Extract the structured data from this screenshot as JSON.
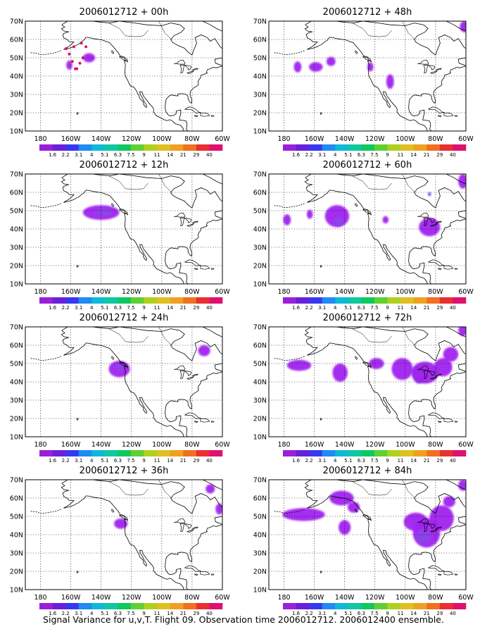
{
  "panels": [
    {
      "title": "2006012712 + 00h",
      "blobs": [
        {
          "lon": -148,
          "lat": 50,
          "rx": 4,
          "ry": 2.5,
          "c": 1
        },
        {
          "lon": -161,
          "lat": 46,
          "rx": 2,
          "ry": 2.5,
          "c": 1
        }
      ],
      "dots": [
        [
          -157,
          44
        ],
        [
          -159,
          48
        ],
        [
          -161,
          52
        ],
        [
          -163,
          55
        ],
        [
          -158,
          56
        ],
        [
          -153,
          58
        ],
        [
          -150,
          56
        ],
        [
          -152,
          50
        ],
        [
          -154,
          47
        ],
        [
          -156,
          44
        ]
      ]
    },
    {
      "title": "2006012712 + 48h",
      "blobs": [
        {
          "lon": -171,
          "lat": 45,
          "rx": 2.5,
          "ry": 3,
          "c": 1
        },
        {
          "lon": -159,
          "lat": 45,
          "rx": 4.5,
          "ry": 2.6,
          "c": 1
        },
        {
          "lon": -149,
          "lat": 48,
          "rx": 3,
          "ry": 2.5,
          "c": 1
        },
        {
          "lon": -123,
          "lat": 45,
          "rx": 2,
          "ry": 2.5,
          "c": 1
        },
        {
          "lon": -110,
          "lat": 37,
          "rx": 2.5,
          "ry": 4,
          "c": 1
        },
        {
          "lon": -61,
          "lat": 67,
          "rx": 3,
          "ry": 3,
          "c": 1
        }
      ]
    },
    {
      "title": "2006012712 + 12h",
      "blobs": [
        {
          "lon": -140,
          "lat": 49,
          "rx": 12,
          "ry": 4,
          "c": 1
        },
        {
          "lon": -138,
          "lat": 49,
          "rx": 6,
          "ry": 2,
          "c": 0
        }
      ]
    },
    {
      "title": "2006012712 + 60h",
      "blobs": [
        {
          "lon": -178,
          "lat": 45,
          "rx": 2.5,
          "ry": 3,
          "c": 1
        },
        {
          "lon": -163,
          "lat": 48,
          "rx": 2,
          "ry": 2.5,
          "c": 1
        },
        {
          "lon": -145,
          "lat": 47,
          "rx": 8,
          "ry": 6,
          "c": 1
        },
        {
          "lon": -144,
          "lat": 44,
          "rx": 3,
          "ry": 2.5,
          "c": 0
        },
        {
          "lon": -113,
          "lat": 45,
          "rx": 2,
          "ry": 2,
          "c": 1
        },
        {
          "lon": -84,
          "lat": 41,
          "rx": 7,
          "ry": 5,
          "c": 1
        },
        {
          "lon": -84,
          "lat": 59,
          "rx": 1,
          "ry": 1,
          "c": 2
        },
        {
          "lon": -62,
          "lat": 66,
          "rx": 3,
          "ry": 4,
          "c": 1
        }
      ]
    },
    {
      "title": "2006012712 + 24h",
      "blobs": [
        {
          "lon": -128,
          "lat": 47,
          "rx": 7,
          "ry": 4.5,
          "c": 1
        },
        {
          "lon": -128,
          "lat": 48,
          "rx": 3,
          "ry": 2,
          "c": 0
        },
        {
          "lon": -72,
          "lat": 57,
          "rx": 4,
          "ry": 3,
          "c": 1
        }
      ]
    },
    {
      "title": "2006012712 + 72h",
      "blobs": [
        {
          "lon": -170,
          "lat": 49,
          "rx": 8,
          "ry": 3,
          "c": 1
        },
        {
          "lon": -143,
          "lat": 45,
          "rx": 5,
          "ry": 5,
          "c": 1
        },
        {
          "lon": -119,
          "lat": 50,
          "rx": 5,
          "ry": 3,
          "c": 1
        },
        {
          "lon": -102,
          "lat": 47,
          "rx": 7,
          "ry": 6,
          "c": 1
        },
        {
          "lon": -91,
          "lat": 44,
          "rx": 4,
          "ry": 5,
          "c": 0
        },
        {
          "lon": -87,
          "lat": 45,
          "rx": 9,
          "ry": 6,
          "c": 1
        },
        {
          "lon": -75,
          "lat": 48,
          "rx": 6,
          "ry": 5,
          "c": 1
        },
        {
          "lon": -70,
          "lat": 55,
          "rx": 5,
          "ry": 4,
          "c": 1
        },
        {
          "lon": -62,
          "lat": 68,
          "rx": 3,
          "ry": 3,
          "c": 1
        }
      ]
    },
    {
      "title": "2006012712 + 36h",
      "blobs": [
        {
          "lon": -127,
          "lat": 46,
          "rx": 4.5,
          "ry": 2.8,
          "c": 1
        },
        {
          "lon": -68,
          "lat": 65,
          "rx": 3,
          "ry": 2.5,
          "c": 1
        },
        {
          "lon": -62,
          "lat": 54,
          "rx": 2.5,
          "ry": 3,
          "c": 1
        }
      ]
    },
    {
      "title": "2006012712 + 84h",
      "blobs": [
        {
          "lon": -167,
          "lat": 51,
          "rx": 14,
          "ry": 3.5,
          "c": 1
        },
        {
          "lon": -142,
          "lat": 60,
          "rx": 8,
          "ry": 4,
          "c": 1
        },
        {
          "lon": -134,
          "lat": 55,
          "rx": 4,
          "ry": 3,
          "c": 1
        },
        {
          "lon": -140,
          "lat": 44,
          "rx": 4,
          "ry": 4,
          "c": 1
        },
        {
          "lon": -93,
          "lat": 47,
          "rx": 8,
          "ry": 5,
          "c": 1
        },
        {
          "lon": -86,
          "lat": 41,
          "rx": 9,
          "ry": 8,
          "c": 1
        },
        {
          "lon": -88,
          "lat": 39,
          "rx": 5,
          "ry": 4,
          "c": 0
        },
        {
          "lon": -76,
          "lat": 49,
          "rx": 8,
          "ry": 7,
          "c": 1
        },
        {
          "lon": -71,
          "lat": 58,
          "rx": 4,
          "ry": 3,
          "c": 1
        },
        {
          "lon": -62,
          "lat": 67,
          "rx": 3,
          "ry": 3,
          "c": 1
        }
      ]
    }
  ],
  "axes": {
    "lon_range": [
      -190,
      -60
    ],
    "lat_range": [
      10,
      70
    ],
    "lon_ticks": [
      {
        "v": -180,
        "label": "180"
      },
      {
        "v": -160,
        "label": "160W"
      },
      {
        "v": -140,
        "label": "140W"
      },
      {
        "v": -120,
        "label": "120W"
      },
      {
        "v": -100,
        "label": "100W"
      },
      {
        "v": -80,
        "label": "80W"
      },
      {
        "v": -60,
        "label": "60W"
      }
    ],
    "lat_ticks": [
      {
        "v": 10,
        "label": "10N"
      },
      {
        "v": 20,
        "label": "20N"
      },
      {
        "v": 30,
        "label": "30N"
      },
      {
        "v": 40,
        "label": "40N"
      },
      {
        "v": 50,
        "label": "50N"
      },
      {
        "v": 60,
        "label": "60N"
      },
      {
        "v": 70,
        "label": "70N"
      }
    ]
  },
  "colorbar": {
    "colors": [
      "#9a20d8",
      "#6a20d8",
      "#3838f0",
      "#1e8cf0",
      "#10b8d8",
      "#10c8a0",
      "#10c860",
      "#60d030",
      "#b0d020",
      "#e0c020",
      "#f0a020",
      "#f07020",
      "#e83030",
      "#e01070"
    ],
    "labels": [
      "1.6",
      "2.2",
      "3.1",
      "4",
      "5.1",
      "6.3",
      "7.5",
      "9",
      "11",
      "14",
      "21",
      "29",
      "40"
    ]
  },
  "caption": "Signal Variance for u,v,T. Flight 09. Observation time 2006012712. 2006012400 ensemble.",
  "shade_colors": [
    "#8c44e8",
    "#a020f0",
    "#3c3cf0"
  ],
  "marker_color": "#e0105a"
}
